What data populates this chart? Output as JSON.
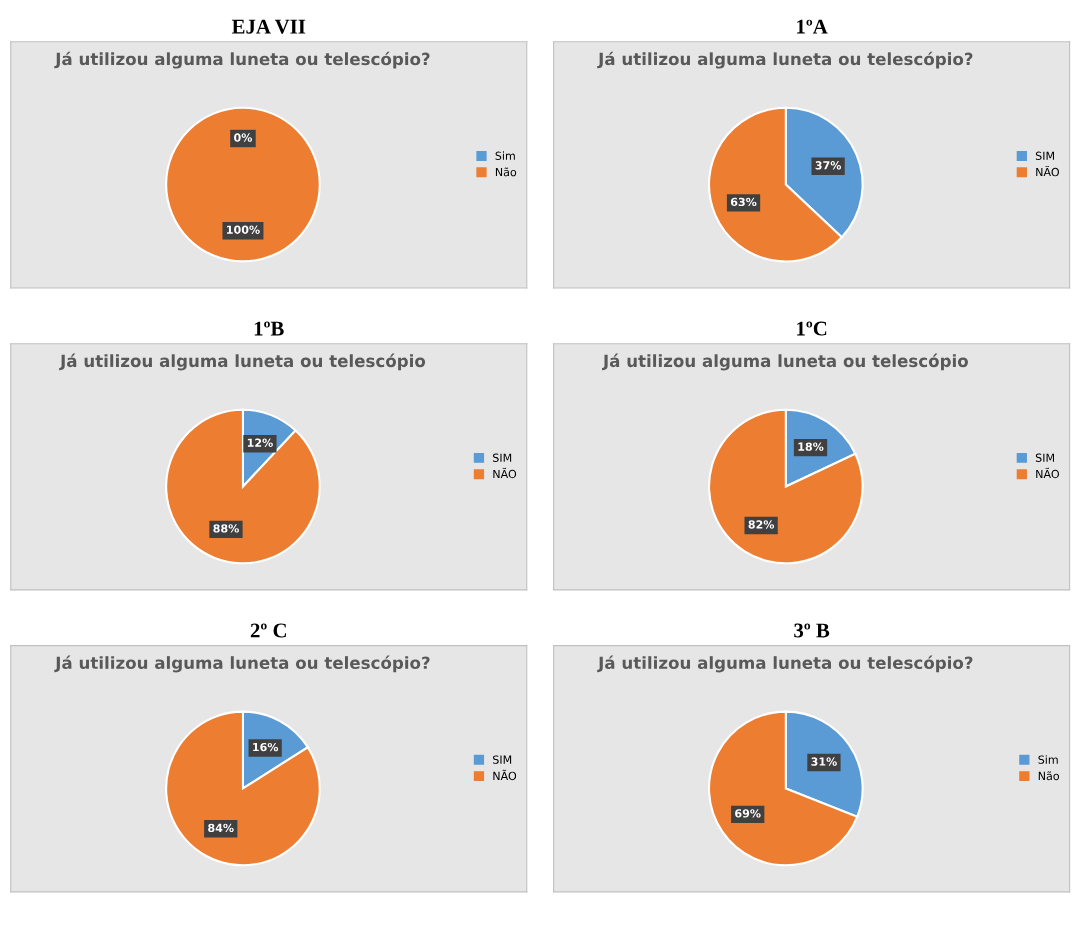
{
  "chart_data": [
    {
      "type": "pie",
      "title": "EJA VII",
      "subtitle": "Já utilizou alguma luneta ou telescópio?",
      "categories": [
        "Sim",
        "Não"
      ],
      "values": [
        0,
        100
      ],
      "value_labels": [
        "0%",
        "100%"
      ],
      "colors": [
        "#5b9bd5",
        "#ed7d31"
      ],
      "legend": "right"
    },
    {
      "type": "pie",
      "title": "1ºA",
      "subtitle": "Já utilizou alguma luneta ou telescópio?",
      "categories": [
        "SIM",
        "NÃO"
      ],
      "values": [
        37,
        63
      ],
      "value_labels": [
        "37%",
        "63%"
      ],
      "colors": [
        "#5b9bd5",
        "#ed7d31"
      ],
      "legend": "right"
    },
    {
      "type": "pie",
      "title": "1ºB",
      "subtitle": "Já utilizou alguma luneta ou telescópio",
      "categories": [
        "SIM",
        "NÃO"
      ],
      "values": [
        12,
        88
      ],
      "value_labels": [
        "12%",
        "88%"
      ],
      "colors": [
        "#5b9bd5",
        "#ed7d31"
      ],
      "legend": "right"
    },
    {
      "type": "pie",
      "title": "1ºC",
      "subtitle": "Já utilizou alguma luneta ou telescópio",
      "categories": [
        "SIM",
        "NÃO"
      ],
      "values": [
        18,
        82
      ],
      "value_labels": [
        "18%",
        "82%"
      ],
      "colors": [
        "#5b9bd5",
        "#ed7d31"
      ],
      "legend": "right"
    },
    {
      "type": "pie",
      "title": "2º C",
      "subtitle": "Já utilizou alguma luneta ou telescópio?",
      "categories": [
        "SIM",
        "NÃO"
      ],
      "values": [
        16,
        84
      ],
      "value_labels": [
        "16%",
        "84%"
      ],
      "colors": [
        "#5b9bd5",
        "#ed7d31"
      ],
      "legend": "right"
    },
    {
      "type": "pie",
      "title": "3º B",
      "subtitle": "Já utilizou alguma luneta ou telescópio?",
      "categories": [
        "Sim",
        "Não"
      ],
      "values": [
        31,
        69
      ],
      "value_labels": [
        "31%",
        "69%"
      ],
      "colors": [
        "#5b9bd5",
        "#ed7d31"
      ],
      "legend": "right"
    }
  ]
}
